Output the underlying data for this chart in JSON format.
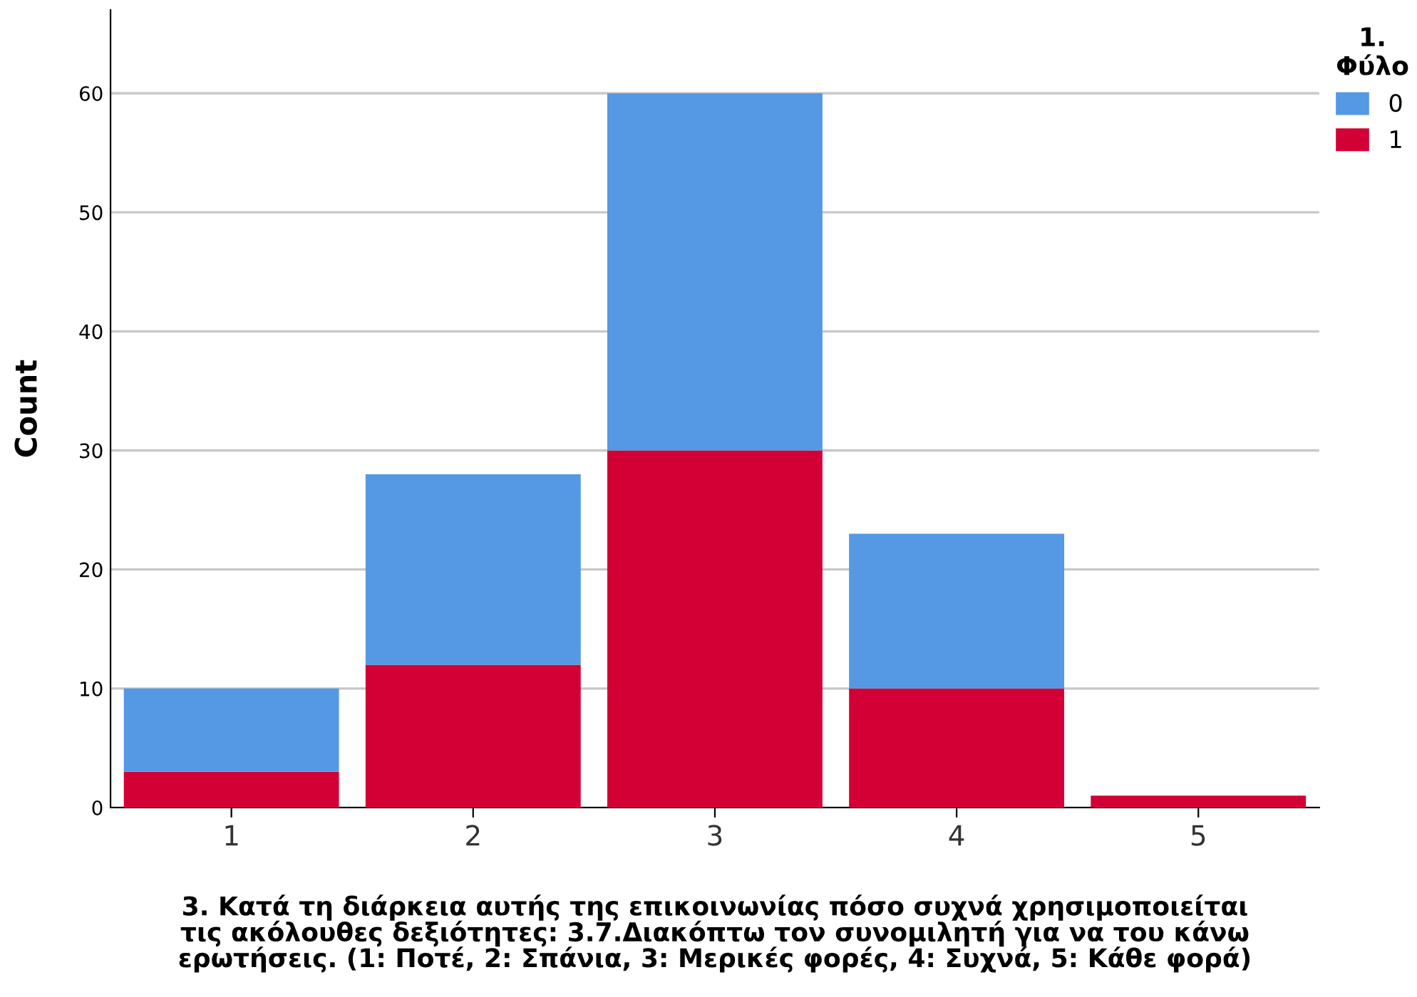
{
  "chart_data": {
    "type": "bar",
    "stacked": true,
    "xlabel": "3. Κατά τη διάρκεια αυτής της επικοινωνίας πόσο συχνά χρησιμοποιείται\nτις ακόλουθες δεξιότητες: 3.7.Διακόπτω τον συνομιλητή για να του κάνω\nερωτήσεις. (1: Ποτέ, 2: Σπάνια, 3: Μερικές φορές, 4: Συχνά, 5: Κάθε φορά)",
    "ylabel": "Count",
    "legend_title": "1.\nΦύλο",
    "categories": [
      "1",
      "2",
      "3",
      "4",
      "5"
    ],
    "series": [
      {
        "name": "1",
        "color": "#d20034",
        "values": [
          3,
          12,
          30,
          10,
          1
        ]
      },
      {
        "name": "0",
        "color": "#5598e4",
        "values": [
          7,
          16,
          30,
          13,
          0
        ]
      }
    ],
    "ylim": [
      0,
      67
    ],
    "yticks": [
      0,
      10,
      20,
      30,
      40,
      50,
      60
    ],
    "grid": "y",
    "legend": "top right"
  }
}
